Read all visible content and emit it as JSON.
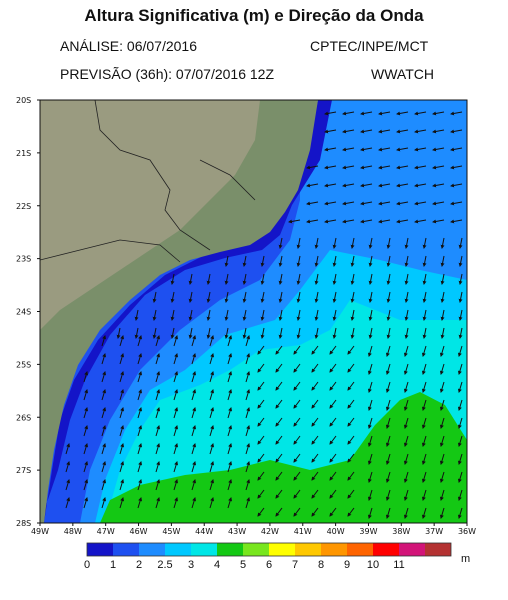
{
  "header": {
    "title": "Altura Significativa (m) e Direção da Onda",
    "analysis": "ANÁLISE: 06/07/2016",
    "institution": "CPTEC/INPE/MCT",
    "forecast": "PREVISÃO (36h): 07/07/2016 12Z",
    "model": "WWATCH"
  },
  "map": {
    "lat_labels": [
      "20S",
      "21S",
      "22S",
      "23S",
      "24S",
      "25S",
      "26S",
      "27S",
      "28S"
    ],
    "lon_labels": [
      "49W",
      "48W",
      "47W",
      "46W",
      "45W",
      "44W",
      "43W",
      "42W",
      "41W",
      "40W",
      "39W",
      "38W",
      "37W",
      "36W"
    ],
    "lat_range": [
      -28,
      -20
    ],
    "lon_range": [
      -49,
      -36
    ]
  },
  "colorbar": {
    "unit": "m",
    "labels": [
      "0",
      "1",
      "2",
      "2.5",
      "3",
      "4",
      "5",
      "6",
      "7",
      "8",
      "9",
      "10",
      "11"
    ],
    "colors": [
      "#1414c8",
      "#1e50f0",
      "#1e8cff",
      "#00c8ff",
      "#00e6e6",
      "#14c814",
      "#78e61e",
      "#ffff00",
      "#ffc800",
      "#ff9600",
      "#ff6400",
      "#ff0000",
      "#d21478",
      "#b43232"
    ]
  }
}
